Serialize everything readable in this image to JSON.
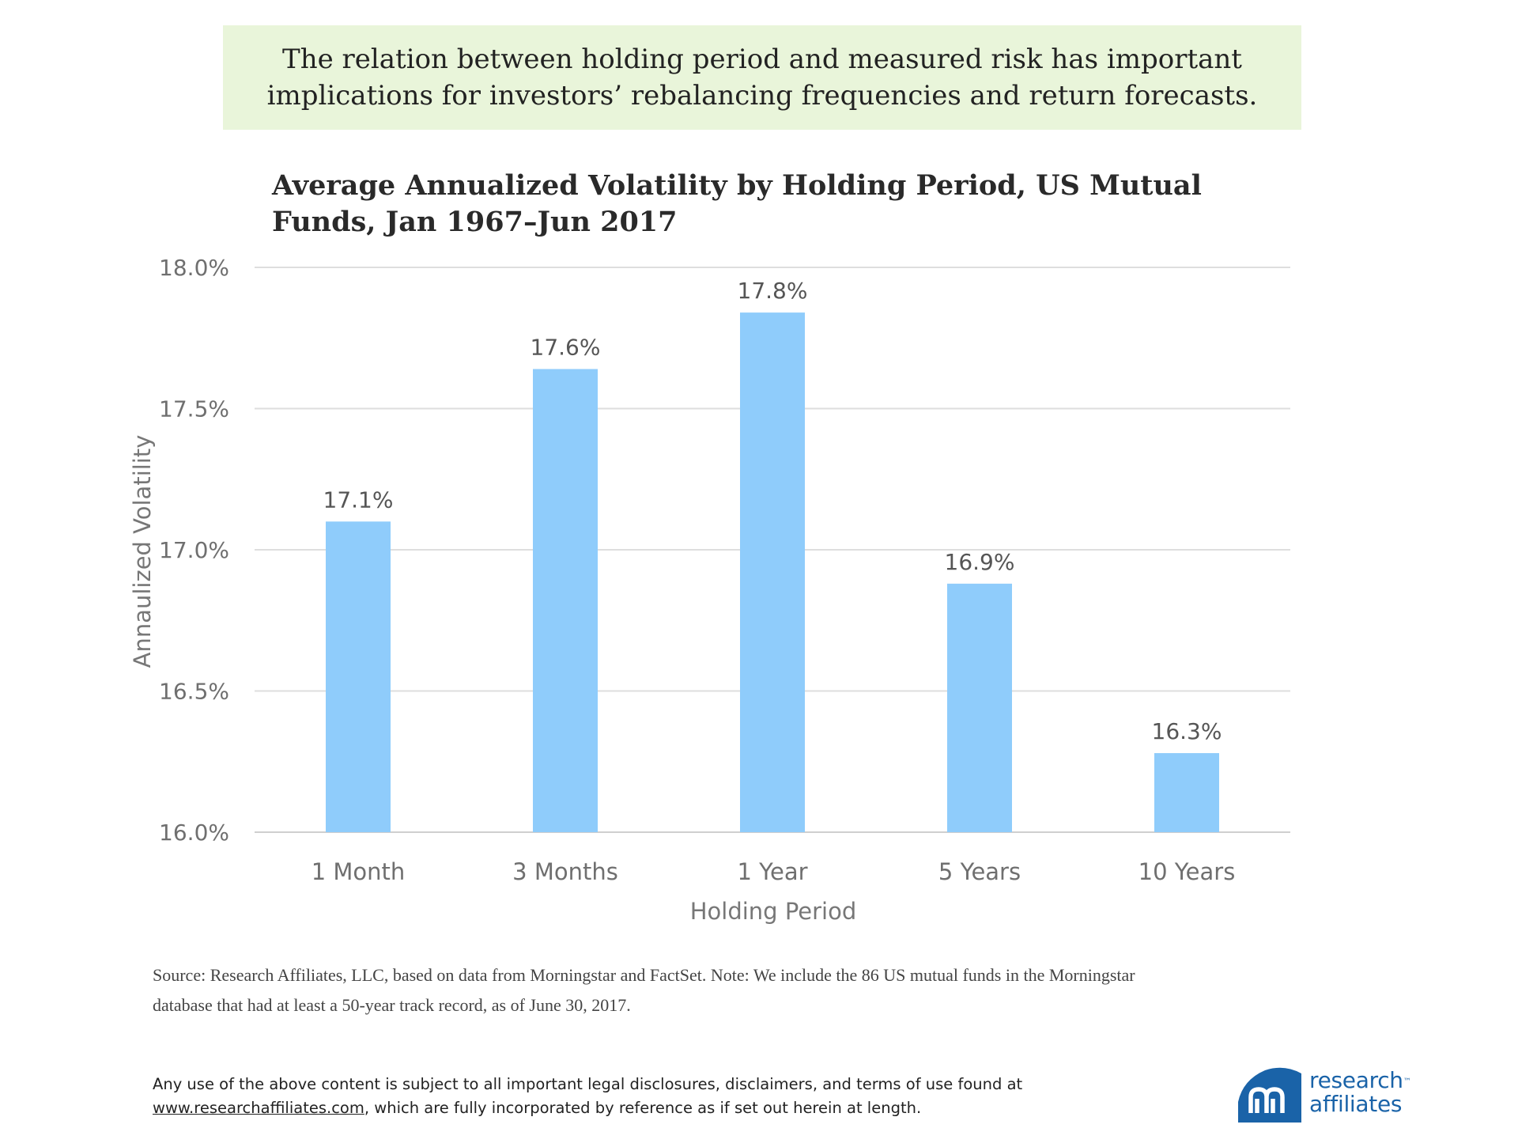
{
  "callout": {
    "line1": "The relation between holding period and measured risk has important",
    "line2": "implications for investors’ rebalancing frequencies and return forecasts."
  },
  "chart_data": {
    "type": "bar",
    "title_line1": "Average Annualized Volatility by Holding Period, US Mutual",
    "title_line2": "Funds, Jan 1967–Jun 2017",
    "categories": [
      "1 Month",
      "3 Months",
      "1 Year",
      "5 Years",
      "10 Years"
    ],
    "values": [
      17.1,
      17.64,
      17.84,
      16.88,
      16.28
    ],
    "data_labels": [
      "17.1%",
      "17.6%",
      "17.8%",
      "16.9%",
      "16.3%"
    ],
    "xlabel": "Holding Period",
    "ylabel": "Annaulized Volatility",
    "ylim": [
      16.0,
      18.0
    ],
    "yticks": [
      16.0,
      16.5,
      17.0,
      17.5,
      18.0
    ],
    "ytick_labels": [
      "16.0%",
      "16.5%",
      "17.0%",
      "17.5%",
      "18.0%"
    ],
    "grid": true,
    "bar_color": "#8fccfb"
  },
  "source_note": {
    "line1": "Source: Research Affiliates, LLC, based on data from Morningstar and FactSet. Note: We include the 86 US mutual funds in the Morningstar",
    "line2": "database that had at least a 50-year track record, as of June 30, 2017."
  },
  "disclaimer": {
    "line1": "Any use of the above content is subject to all important legal disclosures, disclaimers, and terms of use found at",
    "link": "www.researchaffiliates.com",
    "line2_rest": ", which are fully incorporated by reference as if set out herein at length."
  },
  "logo": {
    "word1": "research",
    "tm": "™",
    "word2": "affiliates",
    "color": "#1a63a8"
  }
}
